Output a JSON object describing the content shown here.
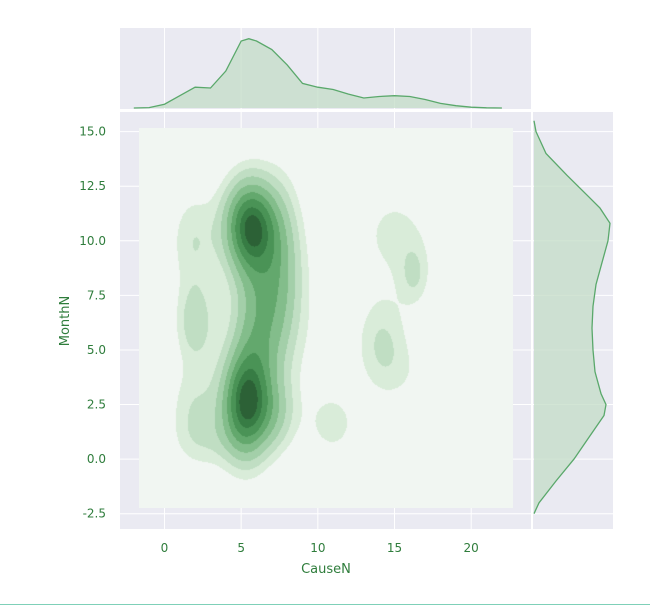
{
  "chart_data": {
    "type": "kde-jointplot",
    "xlabel": "CauseN",
    "ylabel": "MonthN",
    "xlim": [
      -2.9,
      23.9
    ],
    "ylim": [
      -3.2,
      15.9
    ],
    "xticks": [
      0,
      5,
      10,
      15,
      20
    ],
    "yticks": [
      -2.5,
      0.0,
      2.5,
      5.0,
      7.5,
      10.0,
      12.5,
      15.0
    ],
    "xtick_labels": [
      "0",
      "5",
      "10",
      "15",
      "20"
    ],
    "ytick_labels": [
      "-2.5",
      "0.0",
      "2.5",
      "5.0",
      "7.5",
      "10.0",
      "12.5",
      "15.0"
    ],
    "grid": true,
    "colors": {
      "background": "#eaeaf2",
      "grid": "#ffffff",
      "line": "#5aa86b",
      "marginal_fill": "#c3dcc7",
      "levels": [
        "#f1f6f2",
        "#d9ecd9",
        "#c0dec3",
        "#a3cfa9",
        "#83bd8b",
        "#63a86d",
        "#4a9356",
        "#377c44",
        "#2c6136"
      ]
    },
    "contour_levels": 9,
    "marginal_x": {
      "x": [
        -2,
        -1,
        0,
        1,
        2,
        3,
        4,
        5,
        5.5,
        6,
        7,
        8,
        9,
        10,
        11,
        12,
        13,
        14,
        15,
        16,
        17,
        18,
        19,
        20,
        21,
        22
      ],
      "density": [
        0,
        0.005,
        0.05,
        0.16,
        0.27,
        0.26,
        0.48,
        0.87,
        0.9,
        0.87,
        0.76,
        0.56,
        0.32,
        0.27,
        0.24,
        0.18,
        0.13,
        0.15,
        0.16,
        0.15,
        0.11,
        0.06,
        0.03,
        0.01,
        0.003,
        0
      ]
    },
    "marginal_y": {
      "y": [
        -2.5,
        -2,
        -1,
        0,
        1,
        2,
        2.5,
        3,
        4,
        5,
        6,
        7,
        8,
        9,
        10,
        10.8,
        11.5,
        12,
        13,
        14,
        15,
        15.5
      ],
      "density": [
        0,
        0.05,
        0.22,
        0.4,
        0.55,
        0.7,
        0.72,
        0.67,
        0.61,
        0.59,
        0.58,
        0.59,
        0.62,
        0.68,
        0.74,
        0.76,
        0.66,
        0.55,
        0.33,
        0.12,
        0.02,
        0
      ]
    },
    "kde_components": [
      {
        "x": 5.3,
        "y": 2.5,
        "sx": 1.1,
        "sy": 1.7,
        "w": 1.0
      },
      {
        "x": 5.6,
        "y": 10.7,
        "sx": 1.2,
        "sy": 1.5,
        "w": 1.0
      },
      {
        "x": 6.3,
        "y": 6.4,
        "sx": 1.3,
        "sy": 2.4,
        "w": 0.55
      },
      {
        "x": 7.7,
        "y": 9.2,
        "sx": 1.0,
        "sy": 2.5,
        "w": 0.3
      },
      {
        "x": 7.3,
        "y": 2.0,
        "sx": 1.0,
        "sy": 1.2,
        "w": 0.25
      },
      {
        "x": 1.9,
        "y": 10.0,
        "sx": 1.1,
        "sy": 1.6,
        "w": 0.22
      },
      {
        "x": 2.0,
        "y": 6.3,
        "sx": 0.9,
        "sy": 1.3,
        "w": 0.3
      },
      {
        "x": 2.0,
        "y": 2.2,
        "sx": 1.2,
        "sy": 1.6,
        "w": 0.22
      },
      {
        "x": 3.0,
        "y": 0.8,
        "sx": 1.5,
        "sy": 0.9,
        "w": 0.1
      },
      {
        "x": 11.0,
        "y": 1.6,
        "sx": 1.1,
        "sy": 1.0,
        "w": 0.18
      },
      {
        "x": 9.5,
        "y": 6.0,
        "sx": 1.6,
        "sy": 3.0,
        "w": 0.07
      },
      {
        "x": 14.2,
        "y": 5.3,
        "sx": 1.2,
        "sy": 1.6,
        "w": 0.24
      },
      {
        "x": 15.0,
        "y": 10.3,
        "sx": 1.8,
        "sy": 1.6,
        "w": 0.17
      },
      {
        "x": 16.3,
        "y": 8.4,
        "sx": 0.7,
        "sy": 1.0,
        "w": 0.2
      },
      {
        "x": 16.0,
        "y": 3.8,
        "sx": 1.5,
        "sy": 1.2,
        "w": 0.08
      }
    ]
  }
}
